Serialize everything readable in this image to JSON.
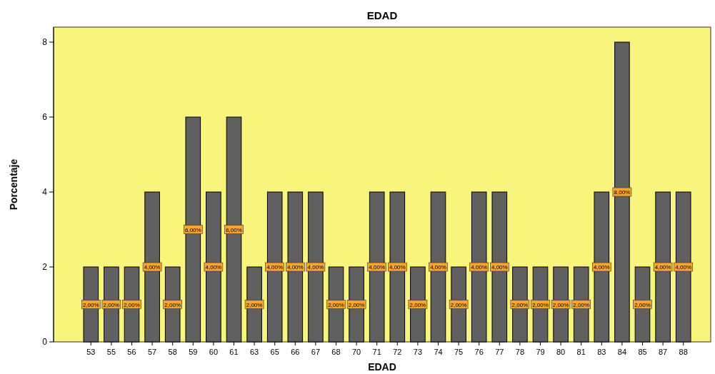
{
  "chart_data": {
    "type": "bar",
    "title": "EDAD",
    "xlabel": "EDAD",
    "ylabel": "Porcentaje",
    "categories": [
      "53",
      "55",
      "56",
      "57",
      "58",
      "59",
      "60",
      "61",
      "63",
      "65",
      "66",
      "67",
      "68",
      "70",
      "71",
      "72",
      "73",
      "74",
      "75",
      "76",
      "77",
      "78",
      "79",
      "80",
      "81",
      "83",
      "84",
      "85",
      "87",
      "88"
    ],
    "values": [
      2,
      2,
      2,
      4,
      2,
      6,
      4,
      6,
      2,
      4,
      4,
      4,
      2,
      2,
      4,
      4,
      2,
      4,
      2,
      4,
      4,
      2,
      2,
      2,
      2,
      4,
      8,
      2,
      4,
      4
    ],
    "value_labels": [
      "2,00%",
      "2,00%",
      "2,00%",
      "4,00%",
      "2,00%",
      "6,00%",
      "4,00%",
      "6,00%",
      "2,00%",
      "4,00%",
      "4,00%",
      "4,00%",
      "2,00%",
      "2,00%",
      "4,00%",
      "4,00%",
      "2,00%",
      "4,00%",
      "2,00%",
      "4,00%",
      "4,00%",
      "2,00%",
      "2,00%",
      "2,00%",
      "2,00%",
      "4,00%",
      "8,00%",
      "2,00%",
      "4,00%",
      "4,00%"
    ],
    "color": "#606060",
    "ylim": [
      0,
      8.4
    ],
    "yticks": [
      0,
      2,
      4,
      6,
      8
    ],
    "grid": false
  }
}
